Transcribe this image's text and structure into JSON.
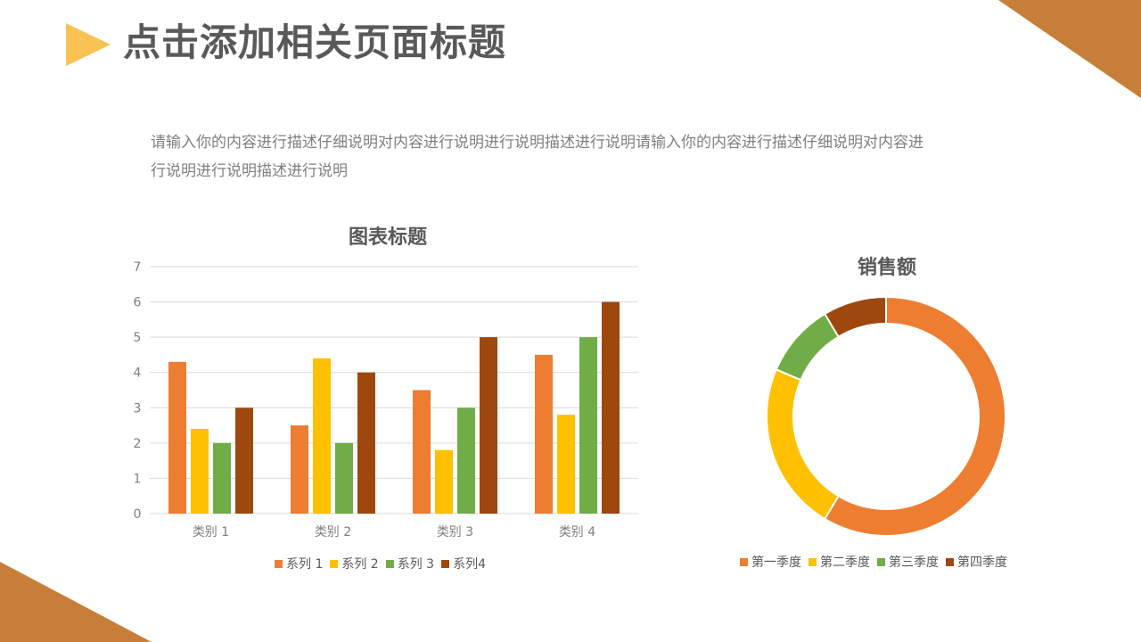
{
  "header": {
    "title": "点击添加相关页面标题"
  },
  "description": "请输入你的内容进行描述仔细说明对内容进行说明进行说明描述进行说明请输入你的内容进行描述仔细说明对内容进行说明进行说明描述进行说明",
  "colors": {
    "accent_corner": "#C77E38",
    "title_arrow": "#F8C352",
    "series1": "#ED7D31",
    "series2": "#FFC000",
    "series3": "#70AD47",
    "series4": "#9E480E",
    "gridline": "#D9D9D9"
  },
  "bar_chart": {
    "title": "图表标题",
    "legend": [
      "系列 1",
      "系列 2",
      "系列 3",
      "系列4"
    ]
  },
  "donut_chart": {
    "title": "销售额",
    "legend": [
      "第一季度",
      "第二季度",
      "第三季度",
      "第四季度"
    ]
  },
  "chart_data": [
    {
      "type": "bar",
      "title": "图表标题",
      "categories": [
        "类别 1",
        "类别 2",
        "类别 3",
        "类别 4"
      ],
      "series": [
        {
          "name": "系列 1",
          "color": "#ED7D31",
          "values": [
            4.3,
            2.5,
            3.5,
            4.5
          ]
        },
        {
          "name": "系列 2",
          "color": "#FFC000",
          "values": [
            2.4,
            4.4,
            1.8,
            2.8
          ]
        },
        {
          "name": "系列 3",
          "color": "#70AD47",
          "values": [
            2,
            2,
            3,
            5
          ]
        },
        {
          "name": "系列4",
          "color": "#9E480E",
          "values": [
            3,
            4,
            5,
            6
          ]
        }
      ],
      "xlabel": "",
      "ylabel": "",
      "ylim": [
        0,
        7
      ],
      "yticks": [
        0,
        1,
        2,
        3,
        4,
        5,
        6,
        7
      ],
      "grid": true,
      "legend_position": "bottom"
    },
    {
      "type": "pie",
      "variant": "doughnut",
      "title": "销售额",
      "categories": [
        "第一季度",
        "第二季度",
        "第三季度",
        "第四季度"
      ],
      "values": [
        8.2,
        3.2,
        1.4,
        1.2
      ],
      "colors": [
        "#ED7D31",
        "#FFC000",
        "#70AD47",
        "#9E480E"
      ],
      "legend_position": "bottom"
    }
  ]
}
